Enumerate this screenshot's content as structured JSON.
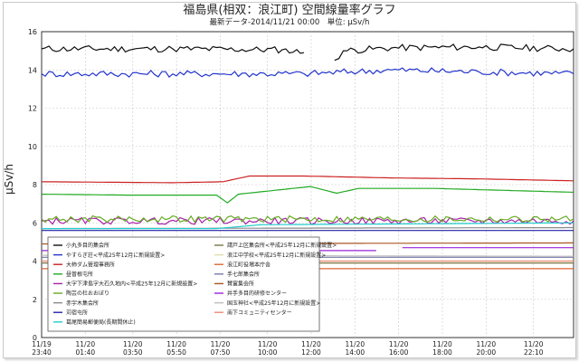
{
  "chart_data": {
    "type": "line",
    "title": "福島県(相双：浪江町) 空間線量率グラフ",
    "subtitle": "最新データ-2014/11/21 00:00　単位: μSv/h",
    "ylabel": "μSv/h",
    "ylim": [
      0,
      16
    ],
    "yticks": [
      "0",
      "2",
      "4",
      "6",
      "8",
      "10",
      "12",
      "14",
      "16"
    ],
    "xlim_hours": [
      0,
      24.33
    ],
    "xticks": [
      {
        "date": "11/19",
        "time": "23:40",
        "h": 0
      },
      {
        "date": "11/20",
        "time": "01:40",
        "h": 2
      },
      {
        "date": "11/20",
        "time": "03:50",
        "h": 4.17
      },
      {
        "date": "11/20",
        "time": "05:50",
        "h": 6.17
      },
      {
        "date": "11/20",
        "time": "07:50",
        "h": 8.17
      },
      {
        "date": "11/20",
        "time": "10:00",
        "h": 10.33
      },
      {
        "date": "11/20",
        "time": "12:00",
        "h": 12.33
      },
      {
        "date": "11/20",
        "time": "14:00",
        "h": 14.33
      },
      {
        "date": "11/20",
        "time": "16:00",
        "h": 16.33
      },
      {
        "date": "11/20",
        "time": "18:00",
        "h": 18.33
      },
      {
        "date": "11/20",
        "time": "20:00",
        "h": 20.33
      },
      {
        "date": "11/20",
        "time": "22:10",
        "h": 22.5
      }
    ],
    "grid": true,
    "legend_position": "bottom-left",
    "series": [
      {
        "name": "小丸多目的集会所",
        "color": "#111111",
        "shape": "noisy",
        "points": [
          [
            0,
            15.1
          ],
          [
            6,
            15.1
          ],
          [
            11,
            15.05
          ],
          [
            12,
            14.9
          ],
          [
            12.8,
            null
          ],
          [
            13.4,
            14.5
          ],
          [
            13.8,
            15.0
          ],
          [
            16,
            15.15
          ],
          [
            20,
            15.2
          ],
          [
            24.33,
            15.1
          ]
        ]
      },
      {
        "name": "やすらぎ荘<平成25年12月に新規設置>",
        "color": "#2233cc",
        "shape": "noisy",
        "points": [
          [
            0,
            13.8
          ],
          [
            8,
            13.8
          ],
          [
            12,
            13.8
          ],
          [
            16,
            14.0
          ],
          [
            20,
            13.9
          ],
          [
            24.33,
            13.8
          ]
        ]
      },
      {
        "name": "大柿ダム管理事務所",
        "color": "#cc2222",
        "points": [
          [
            0,
            8.15
          ],
          [
            6,
            8.1
          ],
          [
            8.3,
            8.15
          ],
          [
            9.5,
            8.45
          ],
          [
            12,
            8.45
          ],
          [
            16,
            8.35
          ],
          [
            20,
            8.3
          ],
          [
            24.33,
            8.2
          ]
        ]
      },
      {
        "name": "昼曽根屯所",
        "color": "#22aa22",
        "points": [
          [
            0,
            7.5
          ],
          [
            4,
            7.45
          ],
          [
            8,
            7.45
          ],
          [
            8.5,
            7.05
          ],
          [
            9,
            7.5
          ],
          [
            12.3,
            7.9
          ],
          [
            13.5,
            7.55
          ],
          [
            14.5,
            7.8
          ],
          [
            18,
            7.8
          ],
          [
            24.33,
            7.6
          ]
        ]
      },
      {
        "name": "大字下津島字大石久地内<平成25年12月に新規設置>",
        "color": "#aa22aa",
        "shape": "noisy",
        "points": [
          [
            0,
            6.1
          ],
          [
            24.33,
            6.1
          ]
        ]
      },
      {
        "name": "陶芸の杜おおぼり",
        "color": "#66aa22",
        "shape": "noisy",
        "points": [
          [
            0,
            6.2
          ],
          [
            24.33,
            6.2
          ]
        ]
      },
      {
        "name": "赤宇木集会所",
        "color": "#888888",
        "points": [
          [
            0,
            5.7
          ],
          [
            24.33,
            5.75
          ]
        ]
      },
      {
        "name": "苅宿屯所",
        "color": "#2222aa",
        "points": [
          [
            0,
            5.6
          ],
          [
            24.33,
            5.6
          ]
        ]
      },
      {
        "name": "葛尾簡易郵便局(長期間休止)",
        "color": "#22cccc",
        "points": [
          [
            0,
            5.7
          ],
          [
            8,
            5.7
          ],
          [
            10,
            5.9
          ],
          [
            24.33,
            6.0
          ]
        ]
      },
      {
        "name": "請戸上区集会所<平成25年12月に新規設置>",
        "color": "#777744",
        "points": [
          [
            0,
            3.9
          ],
          [
            24.33,
            3.9
          ]
        ]
      },
      {
        "name": "浪江中学校<平成25年12月に新規設置>",
        "color": "#ddddaa",
        "points": [
          [
            0,
            4.0
          ],
          [
            24.33,
            4.0
          ]
        ]
      },
      {
        "name": "浪江町役場本庁舎",
        "color": "#dd6633",
        "points": [
          [
            0,
            3.6
          ],
          [
            24.33,
            3.6
          ]
        ]
      },
      {
        "name": "手七郎集会所",
        "color": "#7777aa",
        "points": [
          [
            0,
            4.2
          ],
          [
            24.33,
            4.2
          ]
        ]
      },
      {
        "name": "賛富集会所",
        "color": "#aa5522",
        "points": [
          [
            0,
            4.9
          ],
          [
            24.33,
            4.95
          ]
        ]
      },
      {
        "name": "井手多目的研修センター",
        "color": "#9922dd",
        "points": [
          [
            0,
            4.55
          ],
          [
            15.3,
            4.55
          ],
          [
            15.3,
            null
          ],
          [
            16.5,
            4.7
          ],
          [
            24.33,
            4.7
          ]
        ]
      },
      {
        "name": "国玉神社<平成25年12月に新規設置>",
        "color": "#bbbbbb",
        "points": [
          [
            0,
            4.3
          ],
          [
            24.33,
            4.25
          ]
        ]
      },
      {
        "name": "南下コミュニティセンター",
        "color": "#ee8877",
        "points": [
          [
            0,
            4.0
          ],
          [
            24.33,
            4.0
          ]
        ]
      }
    ]
  }
}
